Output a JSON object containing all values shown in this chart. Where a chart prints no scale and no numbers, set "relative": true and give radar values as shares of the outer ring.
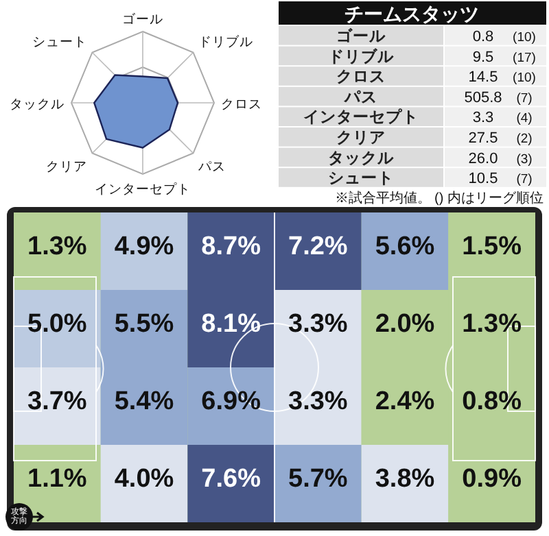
{
  "chart_data": [
    {
      "type": "radar",
      "categories": [
        "ゴール",
        "ドリブル",
        "クロス",
        "パス",
        "インターセプト",
        "クリア",
        "タックル",
        "シュート"
      ],
      "relative": true,
      "series": [
        {
          "color": "#6f93cf",
          "values": [
            0.37,
            0.49,
            0.49,
            0.53,
            0.63,
            0.72,
            0.68,
            0.55
          ]
        }
      ]
    },
    {
      "type": "other",
      "title": "チームスタッツ",
      "categories": [
        "ゴール",
        "ドリブル",
        "クロス",
        "パス",
        "インターセプト",
        "クリア",
        "タックル",
        "シュート"
      ],
      "series": [
        {
          "values": [
            0.8,
            9.5,
            14.5,
            505.8,
            3.3,
            27.5,
            26.0,
            10.5
          ],
          "value_labels": [
            "0.8",
            "9.5",
            "14.5",
            "505.8",
            "3.3",
            "27.5",
            "26.0",
            "10.5"
          ]
        },
        {
          "values": [
            10,
            17,
            10,
            7,
            4,
            2,
            3,
            7
          ],
          "value_labels": [
            "(10)",
            "(17)",
            "(10)",
            "(7)",
            "(4)",
            "(2)",
            "(3)",
            "(7)"
          ]
        }
      ],
      "annotations": [
        "※試合平均値。 () 内はリーグ順位"
      ]
    },
    {
      "type": "heatmap",
      "categories": [
        null,
        null,
        null,
        null,
        null,
        null
      ],
      "y_categories": [
        null,
        null,
        null,
        null
      ],
      "cells": [
        [
          1.3,
          4.9,
          8.7,
          7.2,
          5.6,
          1.5
        ],
        [
          5.0,
          5.5,
          8.1,
          3.3,
          2.0,
          1.3
        ],
        [
          3.7,
          5.4,
          6.9,
          3.3,
          2.4,
          0.8
        ],
        [
          1.1,
          4.0,
          7.6,
          5.7,
          3.8,
          0.9
        ]
      ],
      "cell_labels": [
        [
          "1.3%",
          "4.9%",
          "8.7%",
          "7.2%",
          "5.6%",
          "1.5%"
        ],
        [
          "5.0%",
          "5.5%",
          "8.1%",
          "3.3%",
          "2.0%",
          "1.3%"
        ],
        [
          "3.7%",
          "5.4%",
          "6.9%",
          "3.3%",
          "2.4%",
          "0.8%"
        ],
        [
          "1.1%",
          "4.0%",
          "7.6%",
          "5.7%",
          "3.8%",
          "0.9%"
        ]
      ],
      "annotations": [
        "攻撃方向"
      ]
    }
  ]
}
